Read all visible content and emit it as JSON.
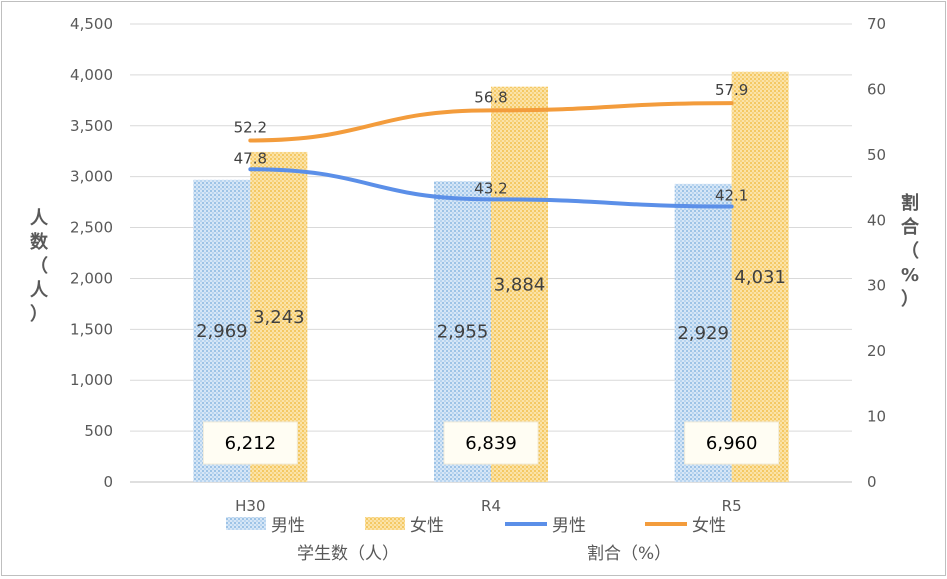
{
  "chart_data": {
    "type": "bar",
    "categories": [
      "H30",
      "R4",
      "R5"
    ],
    "series": [
      {
        "name": "男性",
        "kind": "bar",
        "axis": "left",
        "values": [
          2969,
          2955,
          2929
        ],
        "labels": [
          "2,969",
          "2,955",
          "2,929"
        ],
        "color": "#9DC3E6"
      },
      {
        "name": "女性",
        "kind": "bar",
        "axis": "left",
        "values": [
          3243,
          3884,
          4031
        ],
        "labels": [
          "3,243",
          "3,884",
          "4,031"
        ],
        "color": "#F4C862"
      },
      {
        "name": "男性",
        "kind": "line",
        "axis": "right",
        "values": [
          47.8,
          43.2,
          42.1
        ],
        "labels": [
          "47.8",
          "43.2",
          "42.1"
        ],
        "color": "#5B8FE8"
      },
      {
        "name": "女性",
        "kind": "line",
        "axis": "right",
        "values": [
          52.2,
          56.8,
          57.9
        ],
        "labels": [
          "52.2",
          "56.8",
          "57.9"
        ],
        "color": "#F39C3C"
      }
    ],
    "totals": [
      "6,212",
      "6,839",
      "6,960"
    ],
    "ylabel": "人数（人）",
    "y2label": "割合（%）",
    "ylim": [
      0,
      4500
    ],
    "y2lim": [
      0,
      70
    ],
    "yticks": [
      "0",
      "500",
      "1,000",
      "1,500",
      "2,000",
      "2,500",
      "3,000",
      "3,500",
      "4,000",
      "4,500"
    ],
    "y2ticks": [
      "0",
      "10",
      "20",
      "30",
      "40",
      "50",
      "60",
      "70"
    ],
    "grid": true,
    "legend_position": "bottom",
    "legend_groups": [
      "学生数（人）",
      "割合（%）"
    ]
  }
}
